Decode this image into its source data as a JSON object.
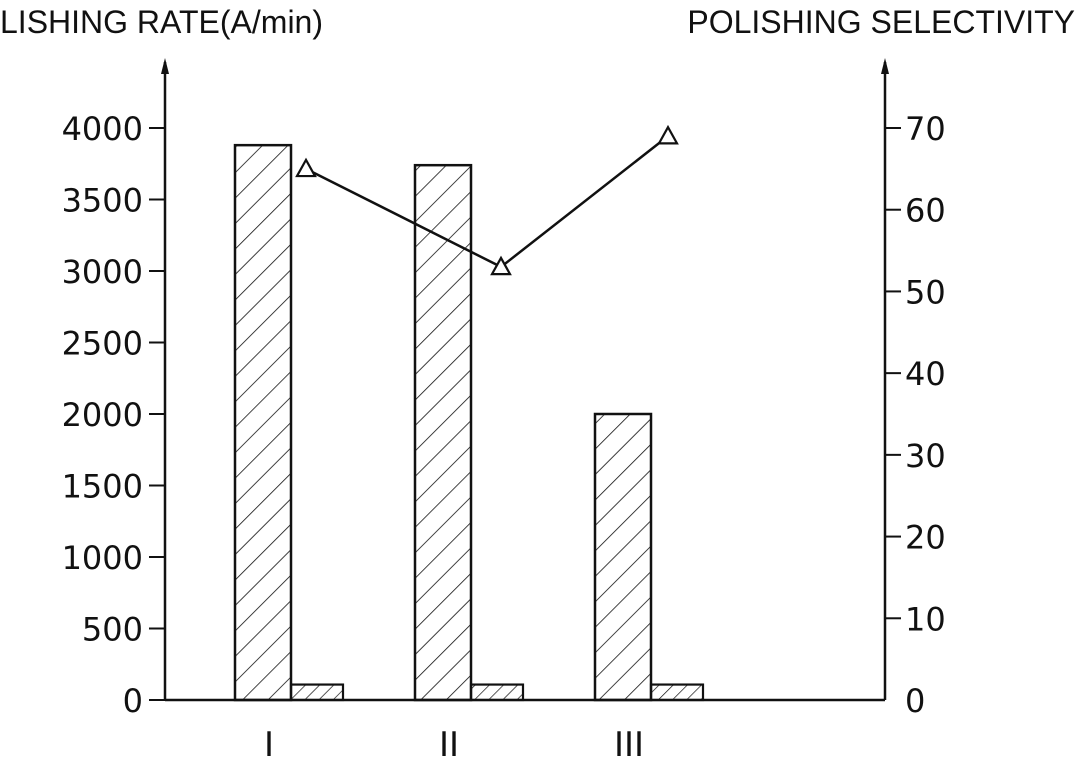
{
  "chart_data": {
    "type": "bar",
    "categories": [
      "I",
      "II",
      "III"
    ],
    "left_axis": {
      "label": "LISHING RATE(A/min)",
      "ylim": [
        0,
        4000
      ],
      "ticks": [
        0,
        500,
        1000,
        1500,
        2000,
        2500,
        3000,
        3500,
        4000
      ]
    },
    "right_axis": {
      "label": "POLISHING SELECTIVITY",
      "ylim": [
        0,
        70
      ],
      "ticks": [
        0,
        10,
        20,
        30,
        40,
        50,
        60,
        70
      ]
    },
    "series": [
      {
        "values": [
          3880,
          3740,
          2000
        ],
        "axis": "left",
        "kind": "bar",
        "hatch": "wide"
      },
      {
        "values": [
          80,
          80,
          80
        ],
        "axis": "left",
        "kind": "bar",
        "hatch": "narrow"
      },
      {
        "values": [
          65,
          53,
          69
        ],
        "axis": "right",
        "kind": "line",
        "marker": "triangle"
      }
    ],
    "grid": false,
    "legend": "none",
    "colors": {
      "ink": "#111111",
      "background": "#ffffff"
    }
  }
}
